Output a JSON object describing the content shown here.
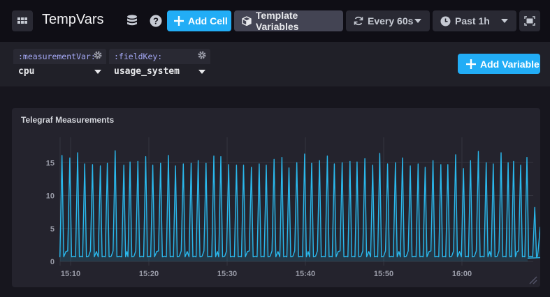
{
  "header": {
    "dashboard_title": "TempVars",
    "apps_icon": "grid-icon",
    "database_icon": "database-icon",
    "help_icon": "question-icon",
    "add_cell_label": "Add Cell",
    "template_variables_label": "Template Variables",
    "refresh": {
      "icon": "refresh-icon",
      "label": "Every 60s"
    },
    "time_range": {
      "icon": "clock-icon",
      "label": "Past 1h"
    },
    "fullscreen_icon": "expand-icon"
  },
  "template_variables": [
    {
      "name": ":measurementVar:",
      "value": "cpu"
    },
    {
      "name": ":fieldKey:",
      "value": "usage_system"
    }
  ],
  "add_variable_label": "Add Variable",
  "cell": {
    "title": "Telegraf Measurements"
  },
  "colors": {
    "accent": "#22adf6",
    "line": "#2ab8ec",
    "background": "#0f0e15",
    "cell_bg": "#24232d"
  },
  "chart_data": {
    "type": "line",
    "title": "Telegraf Measurements",
    "xlabel": "",
    "ylabel": "",
    "ylim": [
      0,
      18
    ],
    "yticks": [
      0,
      5,
      10,
      15
    ],
    "xticks": [
      "15:10",
      "15:20",
      "15:30",
      "15:40",
      "15:50",
      "16:00"
    ],
    "x_range": [
      "15:08:40",
      "16:08:40"
    ],
    "grid": true,
    "series": [
      {
        "name": "cpu.usage_system",
        "color": "#2ab8ec",
        "baseline": 0.7,
        "peaks_x_minutes_from_1510": [
          -1.1,
          -0.1,
          0.9,
          1.8,
          2.8,
          3.8,
          4.7,
          5.7,
          6.8,
          7.6,
          8.6,
          9.6,
          10.5,
          11.5,
          12.5,
          13.4,
          14.4,
          15.4,
          16.3,
          17.3,
          18.3,
          19.2,
          20.2,
          21.2,
          22.1,
          23.1,
          24.1,
          25.0,
          26.0,
          27.0,
          27.9,
          28.9,
          29.9,
          30.8,
          31.8,
          32.8,
          33.7,
          34.7,
          35.7,
          36.6,
          37.6,
          38.6,
          39.5,
          40.5,
          41.5,
          42.4,
          43.4,
          44.4,
          45.3,
          46.3,
          47.3,
          48.2,
          49.2,
          50.2,
          51.1,
          52.1,
          53.1,
          54.0,
          55.0,
          55.9,
          56.6,
          57.5,
          58.3
        ],
        "peaks_values": [
          16.1,
          15.7,
          16.5,
          14.8,
          14.7,
          14.5,
          14.9,
          16.8,
          14.6,
          15.1,
          15.2,
          15.9,
          14.6,
          14.9,
          16.1,
          14.5,
          14.8,
          14.9,
          15.3,
          14.9,
          16.0,
          15.9,
          14.7,
          14.6,
          14.6,
          14.3,
          14.8,
          14.6,
          15.5,
          15.8,
          14.2,
          15.0,
          16.3,
          14.9,
          15.3,
          16.0,
          14.8,
          15.0,
          15.2,
          15.1,
          15.6,
          14.6,
          16.4,
          14.8,
          15.0,
          15.7,
          14.5,
          14.8,
          14.3,
          15.3,
          14.7,
          14.7,
          16.2,
          14.1,
          15.3,
          16.7,
          15.0,
          14.8,
          16.5,
          15.0,
          15.2,
          14.6,
          15.8
        ],
        "tail_peaks_x": [
          59.3,
          60.0,
          61.2,
          62.4
        ],
        "tail_peaks_values": [
          8.2,
          5.2,
          12.7,
          10.1
        ]
      }
    ]
  }
}
